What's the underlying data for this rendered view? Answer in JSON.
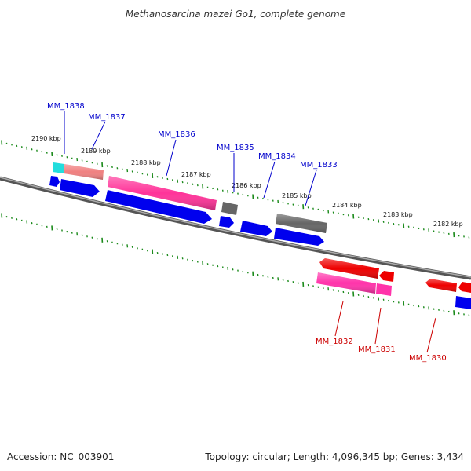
{
  "title": "Methanosarcina mazei Go1, complete genome",
  "footer": {
    "accession": "Accession: NC_003901",
    "stats": "Topology: circular; Length: 4,096,345 bp; Genes: 3,434"
  },
  "colors": {
    "backbone": "#7a7a7a",
    "tick": "#1a8a1a",
    "cds_forward": "#0000ee",
    "cds_reverse": "#ee0000",
    "gene_forward": "#ff3399",
    "gene_forward_upstream": "#f08080",
    "gene_reverse": "#ff33aa",
    "trna": "#22dddd",
    "pseudo": "#666666",
    "label_forward": "#0000cc",
    "label_reverse": "#cc0000"
  },
  "ticks": [
    {
      "label": "2190 kbp"
    },
    {
      "label": "2189 kbp"
    },
    {
      "label": "2188 kbp"
    },
    {
      "label": "2187 kbp"
    },
    {
      "label": "2186 kbp"
    },
    {
      "label": "2185 kbp"
    },
    {
      "label": "2184 kbp"
    },
    {
      "label": "2183 kbp"
    },
    {
      "label": "2182 kbp"
    }
  ],
  "genes_forward": [
    {
      "name": "MM_1838"
    },
    {
      "name": "MM_1837"
    },
    {
      "name": "MM_1836"
    },
    {
      "name": "MM_1835"
    },
    {
      "name": "MM_1834"
    },
    {
      "name": "MM_1833"
    }
  ],
  "genes_reverse": [
    {
      "name": "MM_1832"
    },
    {
      "name": "MM_1831"
    },
    {
      "name": "MM_1830"
    }
  ]
}
